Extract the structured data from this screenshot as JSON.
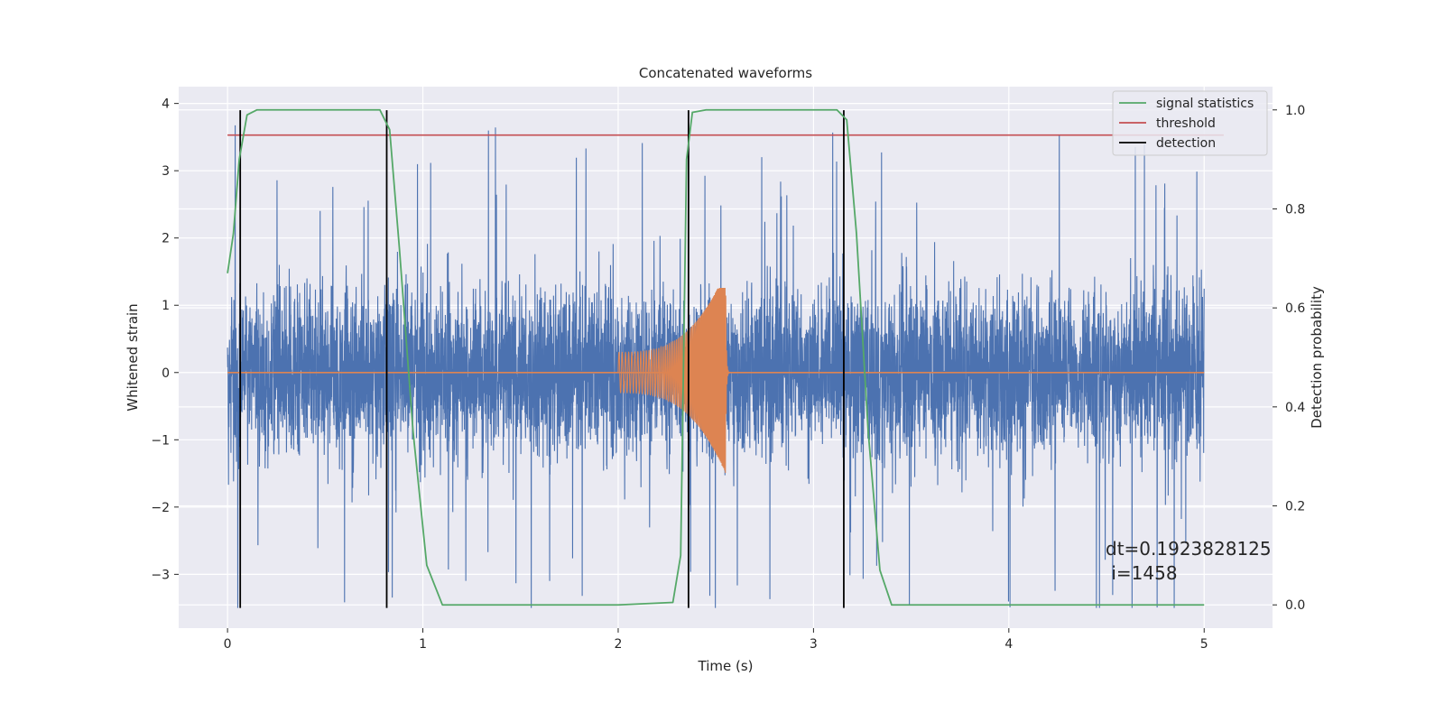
{
  "chart_data": {
    "type": "line",
    "title": "Concatenated waveforms",
    "xlabel": "Time (s)",
    "ylabel": "Whitened strain",
    "y2label": "Detection probability",
    "xlim": [
      -0.25,
      5.35
    ],
    "ylim": [
      -3.8,
      4.25
    ],
    "y2lim": [
      -0.047,
      1.047
    ],
    "xticks": [
      0,
      1,
      2,
      3,
      4,
      5
    ],
    "yticks": [
      -3,
      -2,
      -1,
      0,
      1,
      2,
      3,
      4
    ],
    "y2ticks": [
      0.0,
      0.2,
      0.4,
      0.6,
      0.8,
      1.0
    ],
    "xtick_labels": [
      "0",
      "1",
      "2",
      "3",
      "4",
      "5"
    ],
    "ytick_labels": [
      "−3",
      "−2",
      "−1",
      "0",
      "1",
      "2",
      "3",
      "4"
    ],
    "y2tick_labels": [
      "0.0",
      "0.2",
      "0.4",
      "0.6",
      "0.8",
      "1.0"
    ],
    "grid": true,
    "legend_position": "top-right",
    "legend": [
      "signal statistics",
      "threshold",
      "detection"
    ],
    "noise": {
      "axis": "left",
      "x_range": [
        0,
        5
      ],
      "envelope_typical": [
        -1.3,
        1.3
      ],
      "envelope_extreme": [
        -3.5,
        3.9
      ]
    },
    "chirp": {
      "axis": "left",
      "x_range": [
        2.0,
        2.57
      ],
      "amplitude_start": 0.3,
      "amplitude_peak_max": 1.25,
      "amplitude_peak_min": -1.85,
      "peak_time": 2.55
    },
    "signal_statistics": {
      "axis": "right",
      "x": [
        0,
        0.03,
        0.06,
        0.1,
        0.15,
        0.3,
        0.5,
        0.7,
        0.78,
        0.83,
        0.88,
        0.95,
        1.02,
        1.1,
        1.3,
        1.6,
        2.0,
        2.28,
        2.32,
        2.35,
        2.38,
        2.45,
        2.7,
        3.0,
        3.12,
        3.17,
        3.22,
        3.28,
        3.34,
        3.4,
        3.6,
        4.0,
        4.5,
        5.0
      ],
      "y": [
        0.67,
        0.75,
        0.9,
        0.99,
        1.0,
        1.0,
        1.0,
        1.0,
        1.0,
        0.96,
        0.72,
        0.35,
        0.08,
        0.0,
        0.0,
        0.0,
        0.0,
        0.005,
        0.1,
        0.9,
        0.995,
        1.0,
        1.0,
        1.0,
        1.0,
        0.98,
        0.75,
        0.35,
        0.07,
        0.0,
        0.0,
        0.0,
        0.0,
        0.0
      ]
    },
    "threshold": {
      "axis": "left",
      "value": 3.53,
      "x_range": [
        0,
        5.1
      ]
    },
    "detections": {
      "axis": "left",
      "x": [
        0.065,
        0.815,
        2.36,
        3.155
      ],
      "y_range": [
        -3.5,
        3.9
      ]
    },
    "annotation": {
      "text_line1": "dt=0.1923828125",
      "text_line2": " i=1458",
      "x": 4.5,
      "y": -2.75
    }
  },
  "colors": {
    "background": "#eaeaf2",
    "grid": "#ffffff",
    "noise": "#4c72b0",
    "chirp": "#dd8452",
    "signal_statistics": "#55a868",
    "threshold": "#c44e52",
    "detection": "#000000"
  }
}
